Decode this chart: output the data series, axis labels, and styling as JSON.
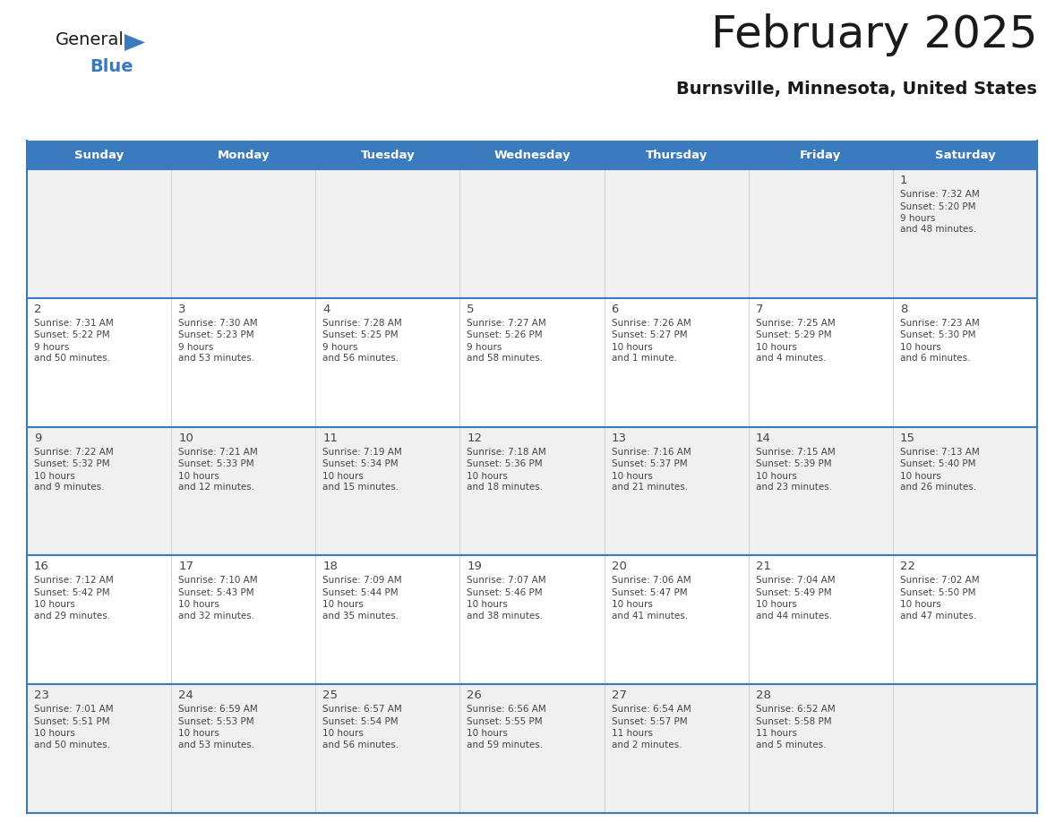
{
  "title": "February 2025",
  "subtitle": "Burnsville, Minnesota, United States",
  "header_bg_color": "#3a7bbf",
  "header_text_color": "#ffffff",
  "day_names": [
    "Sunday",
    "Monday",
    "Tuesday",
    "Wednesday",
    "Thursday",
    "Friday",
    "Saturday"
  ],
  "row_bg_colors": [
    "#f0f0f0",
    "#ffffff",
    "#f0f0f0",
    "#ffffff",
    "#f0f0f0"
  ],
  "border_color": "#3a7bbf",
  "day_num_color": "#444444",
  "info_text_color": "#444444",
  "logo_general_color": "#1a1a1a",
  "logo_blue_color": "#3a7bbf",
  "logo_triangle_color": "#3a7bbf",
  "title_color": "#1a1a1a",
  "subtitle_color": "#1a1a1a",
  "calendar": [
    [
      null,
      null,
      null,
      null,
      null,
      null,
      {
        "day": "1",
        "sunrise": "7:32 AM",
        "sunset": "5:20 PM",
        "daylight": "9 hours\nand 48 minutes."
      }
    ],
    [
      {
        "day": "2",
        "sunrise": "7:31 AM",
        "sunset": "5:22 PM",
        "daylight": "9 hours\nand 50 minutes."
      },
      {
        "day": "3",
        "sunrise": "7:30 AM",
        "sunset": "5:23 PM",
        "daylight": "9 hours\nand 53 minutes."
      },
      {
        "day": "4",
        "sunrise": "7:28 AM",
        "sunset": "5:25 PM",
        "daylight": "9 hours\nand 56 minutes."
      },
      {
        "day": "5",
        "sunrise": "7:27 AM",
        "sunset": "5:26 PM",
        "daylight": "9 hours\nand 58 minutes."
      },
      {
        "day": "6",
        "sunrise": "7:26 AM",
        "sunset": "5:27 PM",
        "daylight": "10 hours\nand 1 minute."
      },
      {
        "day": "7",
        "sunrise": "7:25 AM",
        "sunset": "5:29 PM",
        "daylight": "10 hours\nand 4 minutes."
      },
      {
        "day": "8",
        "sunrise": "7:23 AM",
        "sunset": "5:30 PM",
        "daylight": "10 hours\nand 6 minutes."
      }
    ],
    [
      {
        "day": "9",
        "sunrise": "7:22 AM",
        "sunset": "5:32 PM",
        "daylight": "10 hours\nand 9 minutes."
      },
      {
        "day": "10",
        "sunrise": "7:21 AM",
        "sunset": "5:33 PM",
        "daylight": "10 hours\nand 12 minutes."
      },
      {
        "day": "11",
        "sunrise": "7:19 AM",
        "sunset": "5:34 PM",
        "daylight": "10 hours\nand 15 minutes."
      },
      {
        "day": "12",
        "sunrise": "7:18 AM",
        "sunset": "5:36 PM",
        "daylight": "10 hours\nand 18 minutes."
      },
      {
        "day": "13",
        "sunrise": "7:16 AM",
        "sunset": "5:37 PM",
        "daylight": "10 hours\nand 21 minutes."
      },
      {
        "day": "14",
        "sunrise": "7:15 AM",
        "sunset": "5:39 PM",
        "daylight": "10 hours\nand 23 minutes."
      },
      {
        "day": "15",
        "sunrise": "7:13 AM",
        "sunset": "5:40 PM",
        "daylight": "10 hours\nand 26 minutes."
      }
    ],
    [
      {
        "day": "16",
        "sunrise": "7:12 AM",
        "sunset": "5:42 PM",
        "daylight": "10 hours\nand 29 minutes."
      },
      {
        "day": "17",
        "sunrise": "7:10 AM",
        "sunset": "5:43 PM",
        "daylight": "10 hours\nand 32 minutes."
      },
      {
        "day": "18",
        "sunrise": "7:09 AM",
        "sunset": "5:44 PM",
        "daylight": "10 hours\nand 35 minutes."
      },
      {
        "day": "19",
        "sunrise": "7:07 AM",
        "sunset": "5:46 PM",
        "daylight": "10 hours\nand 38 minutes."
      },
      {
        "day": "20",
        "sunrise": "7:06 AM",
        "sunset": "5:47 PM",
        "daylight": "10 hours\nand 41 minutes."
      },
      {
        "day": "21",
        "sunrise": "7:04 AM",
        "sunset": "5:49 PM",
        "daylight": "10 hours\nand 44 minutes."
      },
      {
        "day": "22",
        "sunrise": "7:02 AM",
        "sunset": "5:50 PM",
        "daylight": "10 hours\nand 47 minutes."
      }
    ],
    [
      {
        "day": "23",
        "sunrise": "7:01 AM",
        "sunset": "5:51 PM",
        "daylight": "10 hours\nand 50 minutes."
      },
      {
        "day": "24",
        "sunrise": "6:59 AM",
        "sunset": "5:53 PM",
        "daylight": "10 hours\nand 53 minutes."
      },
      {
        "day": "25",
        "sunrise": "6:57 AM",
        "sunset": "5:54 PM",
        "daylight": "10 hours\nand 56 minutes."
      },
      {
        "day": "26",
        "sunrise": "6:56 AM",
        "sunset": "5:55 PM",
        "daylight": "10 hours\nand 59 minutes."
      },
      {
        "day": "27",
        "sunrise": "6:54 AM",
        "sunset": "5:57 PM",
        "daylight": "11 hours\nand 2 minutes."
      },
      {
        "day": "28",
        "sunrise": "6:52 AM",
        "sunset": "5:58 PM",
        "daylight": "11 hours\nand 5 minutes."
      },
      null
    ]
  ]
}
